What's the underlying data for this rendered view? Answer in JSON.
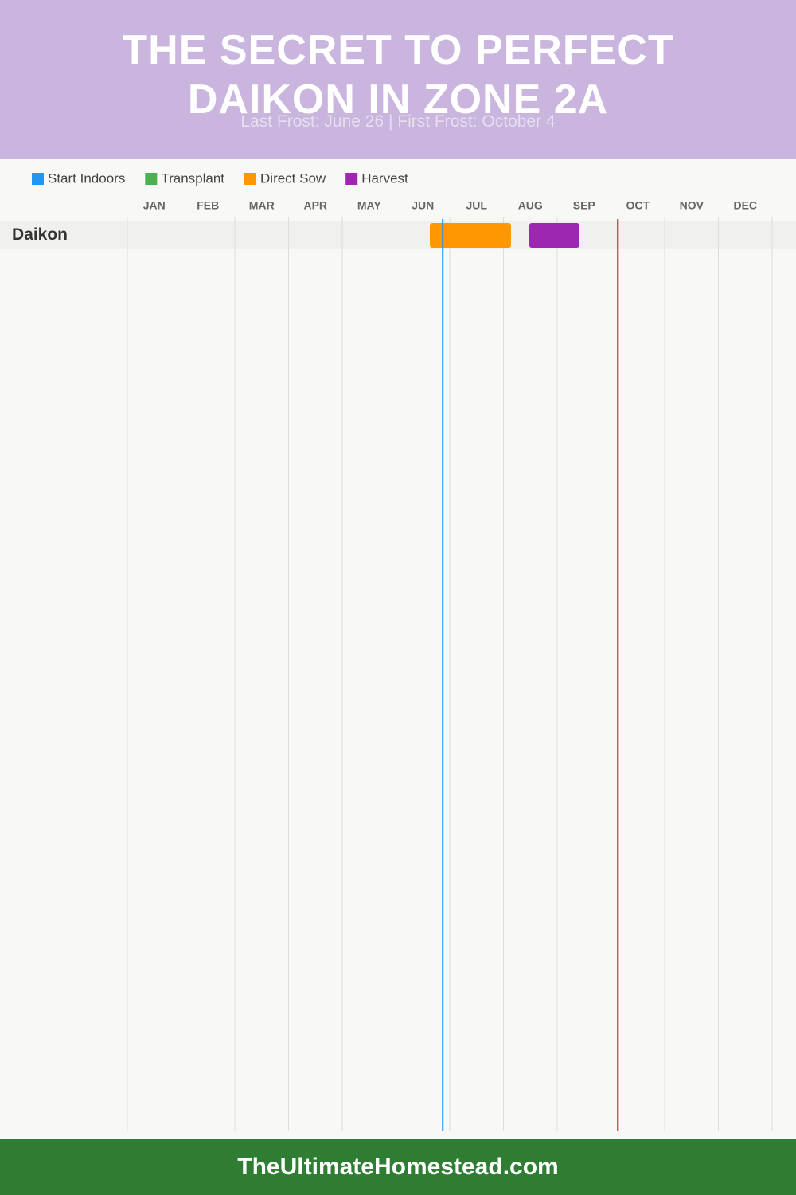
{
  "chart_data": {
    "type": "gantt",
    "title": "THE SECRET TO PERFECT DAIKON IN ZONE 2A",
    "subtitle": "Last Frost: June 26 | First Frost: October 4",
    "categories": [
      "JAN",
      "FEB",
      "MAR",
      "APR",
      "MAY",
      "JUN",
      "JUL",
      "AUG",
      "SEP",
      "OCT",
      "NOV",
      "DEC"
    ],
    "xlim": [
      0,
      12
    ],
    "series": [
      {
        "name": "Start Indoors",
        "color": "#2196f3"
      },
      {
        "name": "Transplant",
        "color": "#4caf50"
      },
      {
        "name": "Direct Sow",
        "color": "#ff9800"
      },
      {
        "name": "Harvest",
        "color": "#9c27b0"
      }
    ],
    "rows": [
      {
        "label": "Daikon",
        "bars": [
          {
            "series": 2,
            "start": 5.63,
            "end": 7.14
          },
          {
            "series": 3,
            "start": 7.48,
            "end": 8.41
          }
        ]
      }
    ],
    "frost_lines": [
      {
        "value": 5.87,
        "color": "#2196f3"
      },
      {
        "value": 9.13,
        "color": "#b71c1c"
      }
    ],
    "footer": "TheUltimateHomestead.com"
  }
}
